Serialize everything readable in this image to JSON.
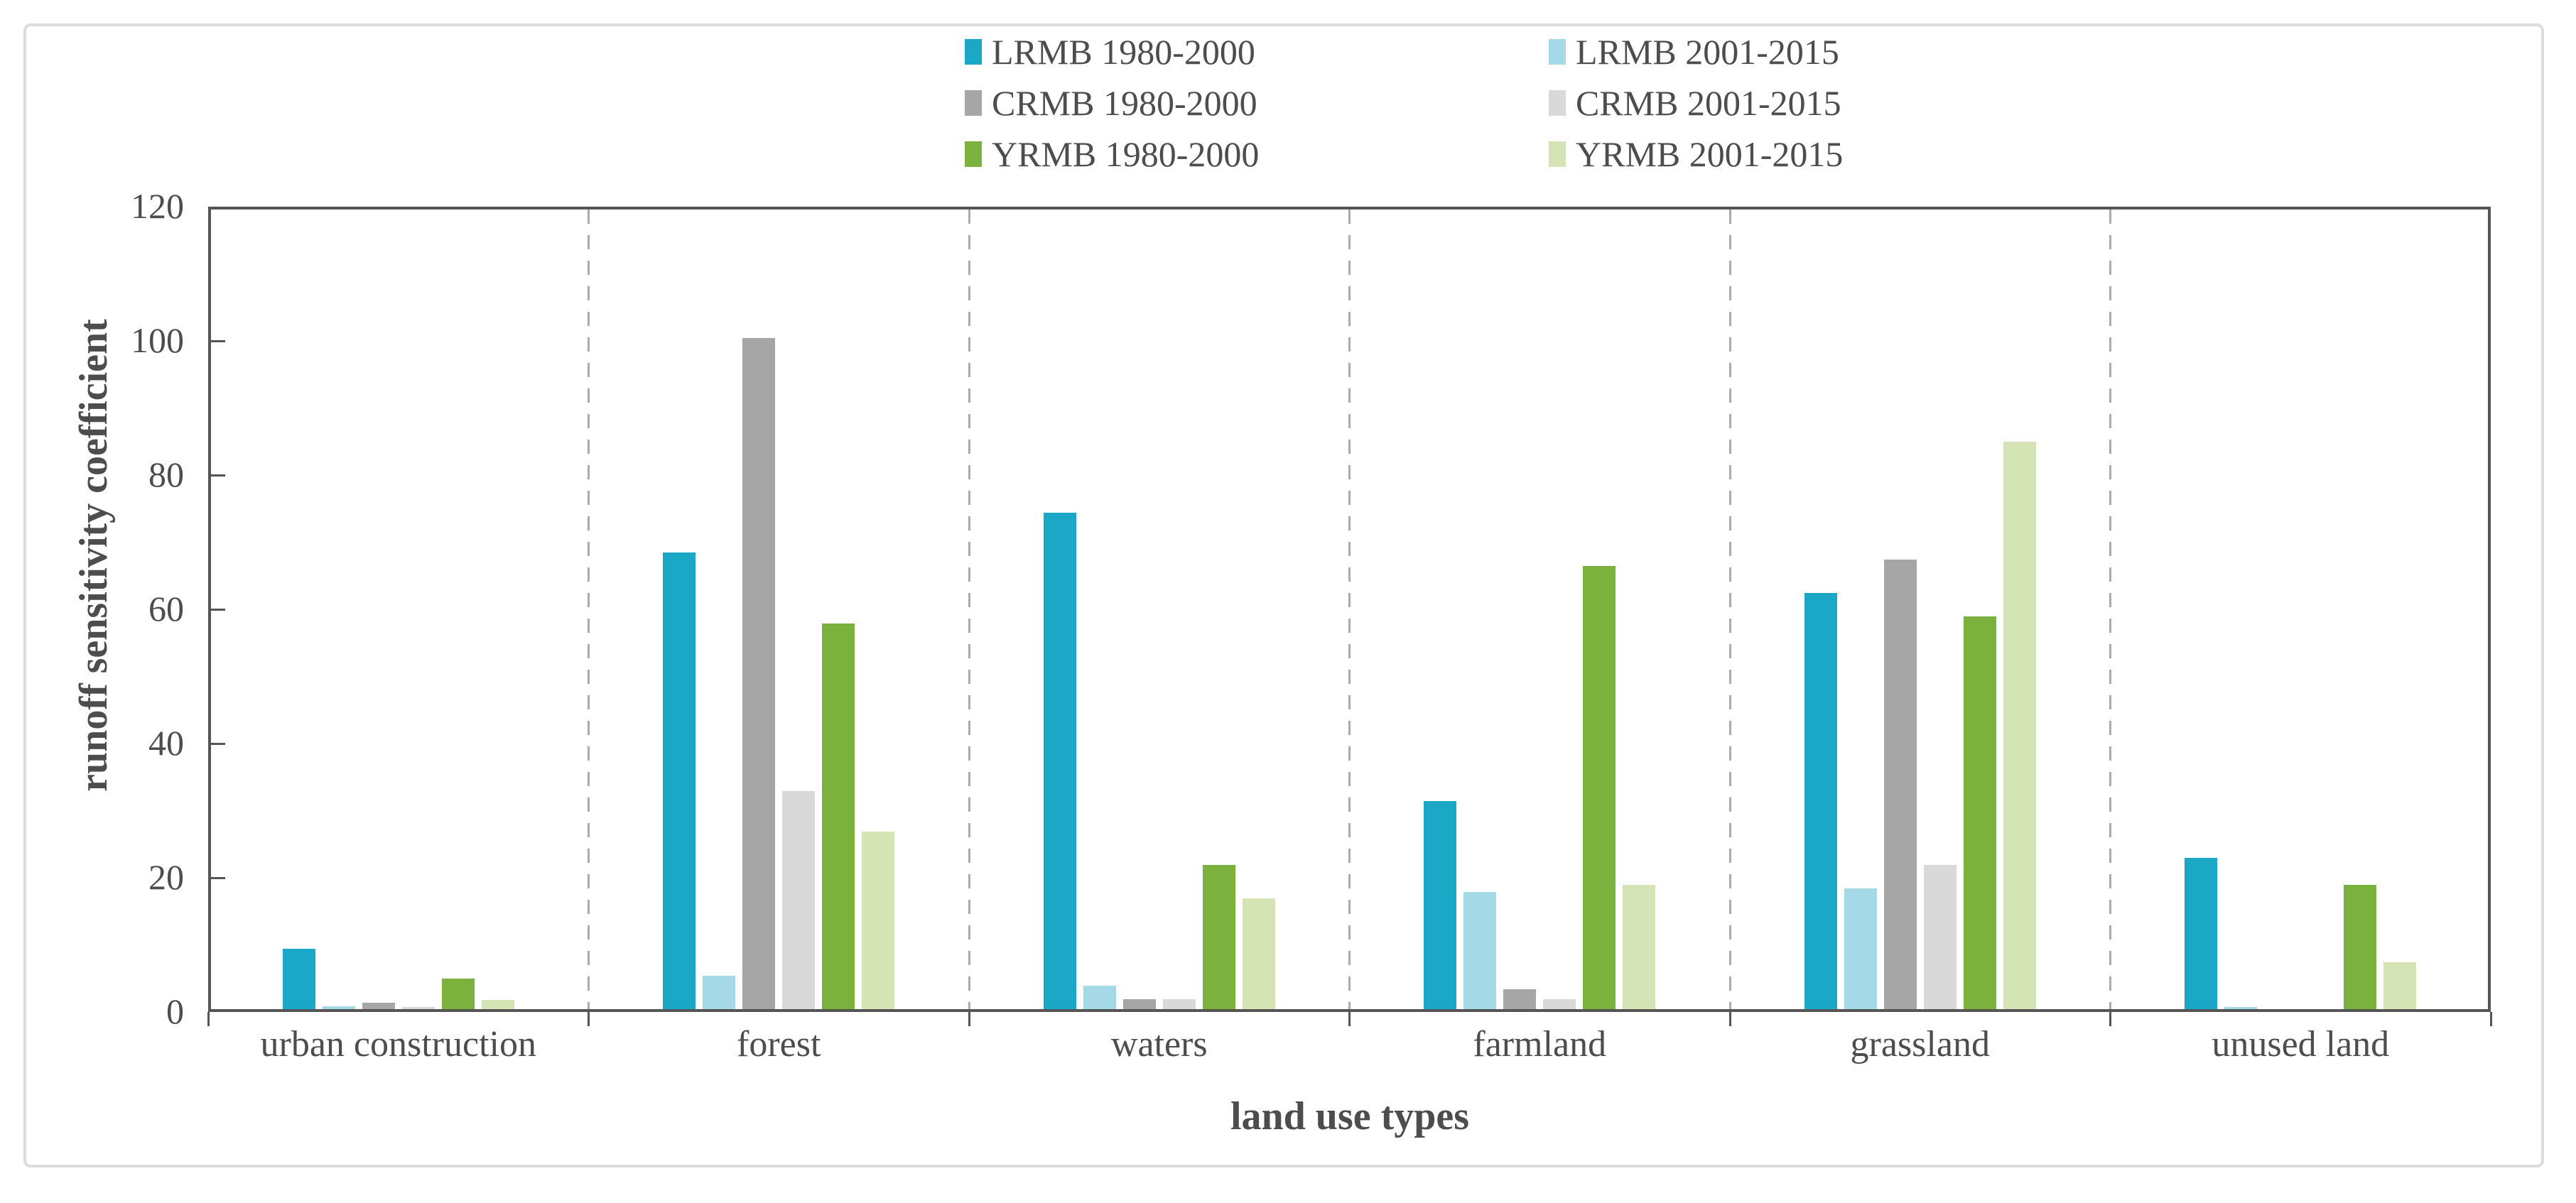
{
  "chart_data": {
    "type": "bar",
    "title": "",
    "xlabel": "land use types",
    "ylabel": "runoff sensitivity coefficient",
    "ylim": [
      0,
      120
    ],
    "yticks": [
      0,
      20,
      40,
      60,
      80,
      100,
      120
    ],
    "grid": false,
    "legend_position": "top",
    "group_separators": "dashed-vertical",
    "categories": [
      "urban construction",
      "forest",
      "waters",
      "farmland",
      "grassland",
      "unused land"
    ],
    "series": [
      {
        "name": "LRMB 1980-2000",
        "color": "#1BA8C6",
        "values": [
          9,
          68,
          74,
          31,
          62,
          22.5
        ]
      },
      {
        "name": "LRMB 2001-2015",
        "color": "#A5D9E8",
        "values": [
          0.4,
          5,
          3.5,
          17.5,
          18,
          0.3
        ]
      },
      {
        "name": "CRMB 1980-2000",
        "color": "#A6A6A6",
        "values": [
          1,
          100,
          1.5,
          3,
          67,
          0
        ]
      },
      {
        "name": "CRMB 2001-2015",
        "color": "#D9D9D9",
        "values": [
          0.3,
          32.5,
          1.5,
          1.5,
          21.5,
          0
        ]
      },
      {
        "name": "YRMB 1980-2000",
        "color": "#7BB23E",
        "values": [
          4.5,
          57.5,
          21.5,
          66,
          58.5,
          18.5
        ]
      },
      {
        "name": "YRMB 2001-2015",
        "color": "#D5E4B5",
        "values": [
          1.4,
          26.5,
          16.5,
          18.5,
          84.5,
          7
        ]
      }
    ],
    "legend_order_note": "two columns, row-major: LRMB pair, CRMB pair, YRMB pair"
  },
  "frame": {
    "border_color": "#dcdcdc"
  },
  "axis": {
    "line_color": "#555555",
    "text_color": "#4d4d4d"
  }
}
